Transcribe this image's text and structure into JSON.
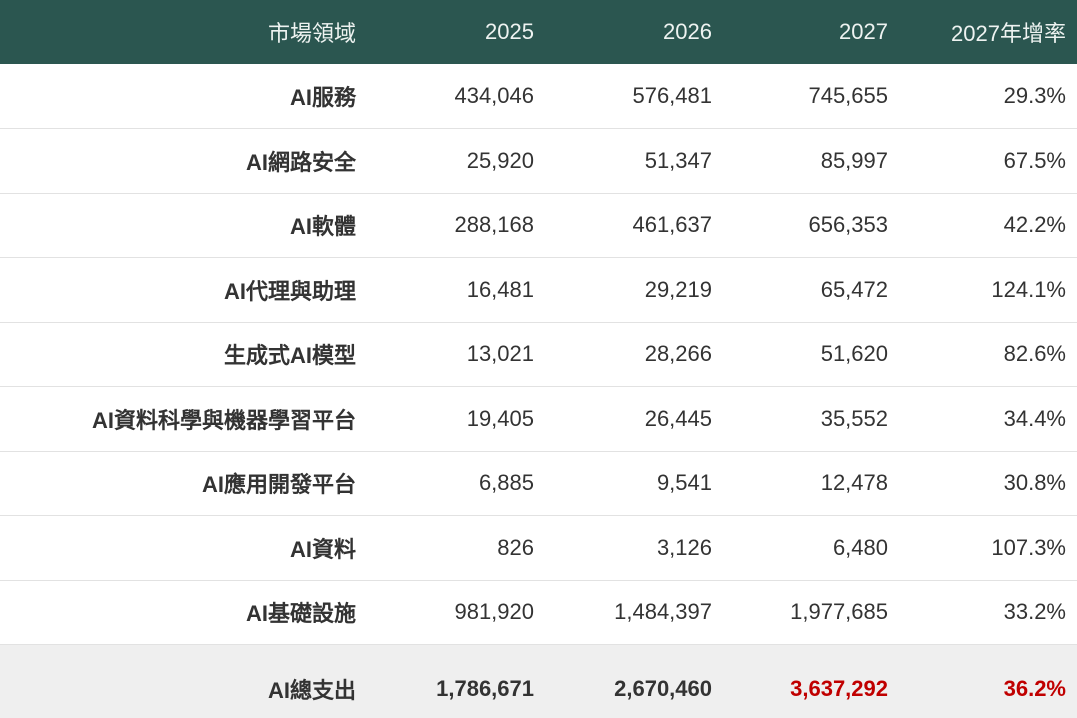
{
  "table": {
    "header": [
      "市場領域",
      "2025",
      "2026",
      "2027",
      "2027年增率"
    ],
    "rows": [
      [
        "AI服務",
        "434,046",
        "576,481",
        "745,655",
        "29.3%"
      ],
      [
        "AI網路安全",
        "25,920",
        "51,347",
        "85,997",
        "67.5%"
      ],
      [
        "AI軟體",
        "288,168",
        "461,637",
        "656,353",
        "42.2%"
      ],
      [
        "AI代理與助理",
        "16,481",
        "29,219",
        "65,472",
        "124.1%"
      ],
      [
        "生成式AI模型",
        "13,021",
        "28,266",
        "51,620",
        "82.6%"
      ],
      [
        "AI資料科學與機器學習平台",
        "19,405",
        "26,445",
        "35,552",
        "34.4%"
      ],
      [
        "AI應用開發平台",
        "6,885",
        "9,541",
        "12,478",
        "30.8%"
      ],
      [
        "AI資料",
        "826",
        "3,126",
        "6,480",
        "107.3%"
      ],
      [
        "AI基礎設施",
        "981,920",
        "1,484,397",
        "1,977,685",
        "33.2%"
      ]
    ],
    "total": [
      "AI總支出",
      "1,786,671",
      "2,670,460",
      "3,637,292",
      "36.2%"
    ]
  }
}
